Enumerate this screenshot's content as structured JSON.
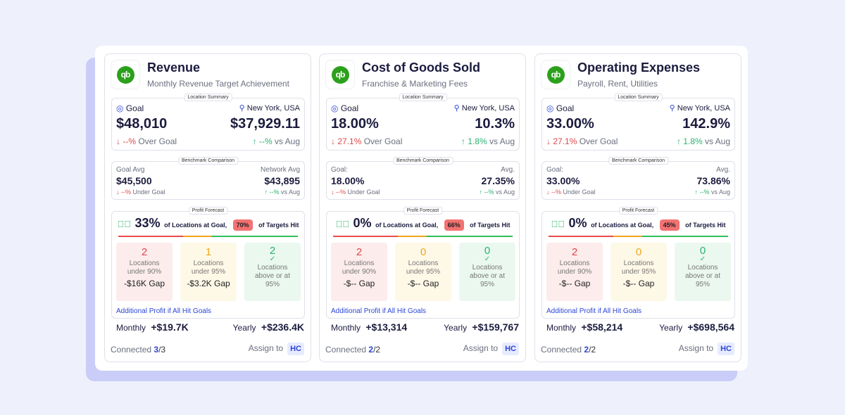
{
  "cards": [
    {
      "title": "Revenue",
      "subtitle": "Monthly Revenue Target Achievement",
      "location_summary_label": "Location Summary",
      "goal_label": "Goal",
      "location": "New York, USA",
      "goal_value": "$48,010",
      "actual_value": "$37,929.11",
      "goal_delta": "↓ --%",
      "goal_delta_text": "Over Goal",
      "actual_delta": "↑ --%",
      "actual_delta_text": "vs Aug",
      "benchmark_label": "Benchmark Comparison",
      "bench_left_label": "Goal Avg",
      "bench_left_value": "$45,500",
      "bench_left_delta": "↓ --%",
      "bench_left_delta_text": "Under Goal",
      "bench_right_label": "Network Avg",
      "bench_right_value": "$43,895",
      "bench_right_delta": "↑ --%",
      "bench_right_delta_text": "vs Aug",
      "forecast_label": "Profit Forecast",
      "pct_at_goal": "33%",
      "at_goal_text": "of Locations at Goal,",
      "targets_hit": "70%",
      "targets_text": "of Targets Hit",
      "under90_count": "2",
      "under90_label": "Locations under 90%",
      "under90_gap": "-$16K Gap",
      "under95_count": "1",
      "under95_label": "Locations under 95%",
      "under95_gap": "-$3.2K Gap",
      "above_count": "2",
      "above_label": "Locations above or at 95%",
      "additional_label": "Additional Profit if All Hit Goals",
      "monthly_label": "Monthly",
      "monthly_value": "+$19.7K",
      "yearly_label": "Yearly",
      "yearly_value": "+$236.4K",
      "connected_label": "Connected",
      "connected_num": "3",
      "connected_den": "/3",
      "assign_label": "Assign to",
      "assignee": "HC"
    },
    {
      "title": "Cost of Goods Sold",
      "subtitle": "Franchise & Marketing Fees",
      "location_summary_label": "Location Summary",
      "goal_label": "Goal",
      "location": "New York, USA",
      "goal_value": "18.00%",
      "actual_value": "10.3%",
      "goal_delta": "↓ 27.1%",
      "goal_delta_text": "Over Goal",
      "actual_delta": "↑ 1.8%",
      "actual_delta_text": "vs Aug",
      "benchmark_label": "Benchmark Comparison",
      "bench_left_label": "Goal:",
      "bench_left_value": "18.00%",
      "bench_left_delta": "↓ --%",
      "bench_left_delta_text": "Under Goal",
      "bench_right_label": "Avg.",
      "bench_right_value": "27.35%",
      "bench_right_delta": "↑ --%",
      "bench_right_delta_text": "vs Aug",
      "forecast_label": "Profit Forecast",
      "pct_at_goal": "0%",
      "at_goal_text": "of Locations at Goal,",
      "targets_hit": "66%",
      "targets_text": "of Targets Hit",
      "under90_count": "2",
      "under90_label": "Locations under 90%",
      "under90_gap": "-$-- Gap",
      "under95_count": "0",
      "under95_label": "Locations under 95%",
      "under95_gap": "-$-- Gap",
      "above_count": "0",
      "above_label": "Locations above or at 95%",
      "additional_label": "Additional Profit if All Hit Goals",
      "monthly_label": "Monthly",
      "monthly_value": "+$13,314",
      "yearly_label": "Yearly",
      "yearly_value": "+$159,767",
      "connected_label": "Connected",
      "connected_num": "2",
      "connected_den": "/2",
      "assign_label": "Assign to",
      "assignee": "HC"
    },
    {
      "title": "Operating Expenses",
      "subtitle": "Payroll, Rent, Utilities",
      "location_summary_label": "Location Summary",
      "goal_label": "Goal",
      "location": "New York, USA",
      "goal_value": "33.00%",
      "actual_value": "142.9%",
      "goal_delta": "↓ 27.1%",
      "goal_delta_text": "Over Goal",
      "actual_delta": "↑ 1.8%",
      "actual_delta_text": "vs Aug",
      "benchmark_label": "Benchmark Comparison",
      "bench_left_label": "Goal:",
      "bench_left_value": "33.00%",
      "bench_left_delta": "↓ --%",
      "bench_left_delta_text": "Under Goal",
      "bench_right_label": "Avg.",
      "bench_right_value": "73.86%",
      "bench_right_delta": "↑ --%",
      "bench_right_delta_text": "vs Aug",
      "forecast_label": "Profit Forecast",
      "pct_at_goal": "0%",
      "at_goal_text": "of Locations at Goal,",
      "targets_hit": "45%",
      "targets_text": "of Targets Hit",
      "under90_count": "2",
      "under90_label": "Locations under 90%",
      "under90_gap": "-$-- Gap",
      "under95_count": "0",
      "under95_label": "Locations under 95%",
      "under95_gap": "-$-- Gap",
      "above_count": "0",
      "above_label": "Locations above or at 95%",
      "additional_label": "Additional Profit if All Hit Goals",
      "monthly_label": "Monthly",
      "monthly_value": "+$58,214",
      "yearly_label": "Yearly",
      "yearly_value": "+$698,564",
      "connected_label": "Connected",
      "connected_num": "2",
      "connected_den": "/2",
      "assign_label": "Assign to",
      "assignee": "HC"
    }
  ],
  "logo_text": "qb"
}
